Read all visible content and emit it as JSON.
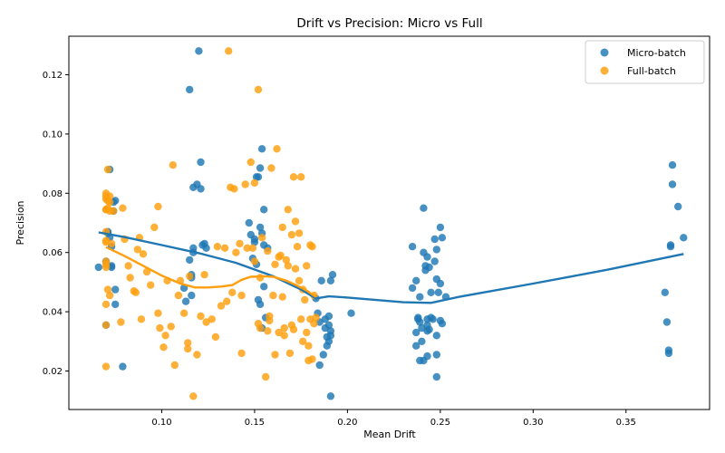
{
  "chart_data": {
    "type": "scatter",
    "title": "Drift vs Precision: Micro vs Full",
    "xlabel": "Mean Drift",
    "ylabel": "Precision",
    "xlim": [
      0.05,
      0.395
    ],
    "ylim": [
      0.007,
      0.133
    ],
    "xticks": [
      0.1,
      0.15,
      0.2,
      0.25,
      0.3,
      0.35
    ],
    "xtick_labels": [
      "0.10",
      "0.15",
      "0.20",
      "0.25",
      "0.30",
      "0.35"
    ],
    "yticks": [
      0.02,
      0.04,
      0.06,
      0.08,
      0.1,
      0.12
    ],
    "ytick_labels": [
      "0.02",
      "0.04",
      "0.06",
      "0.08",
      "0.10",
      "0.12"
    ],
    "grid": false,
    "legend_position": "top-right",
    "series": [
      {
        "name": "Micro-batch",
        "color": "#1f77b4",
        "points": [
          [
            0.066,
            0.055
          ],
          [
            0.07,
            0.0355
          ],
          [
            0.07,
            0.057
          ],
          [
            0.071,
            0.067
          ],
          [
            0.071,
            0.0665
          ],
          [
            0.072,
            0.088
          ],
          [
            0.072,
            0.065
          ],
          [
            0.073,
            0.062
          ],
          [
            0.073,
            0.0555
          ],
          [
            0.073,
            0.055
          ],
          [
            0.074,
            0.077
          ],
          [
            0.074,
            0.074
          ],
          [
            0.075,
            0.0775
          ],
          [
            0.075,
            0.0475
          ],
          [
            0.075,
            0.0425
          ],
          [
            0.079,
            0.0215
          ],
          [
            0.115,
            0.115
          ],
          [
            0.115,
            0.0575
          ],
          [
            0.116,
            0.0525
          ],
          [
            0.116,
            0.0515
          ],
          [
            0.116,
            0.0455
          ],
          [
            0.117,
            0.082
          ],
          [
            0.117,
            0.0615
          ],
          [
            0.117,
            0.06
          ],
          [
            0.119,
            0.083
          ],
          [
            0.12,
            0.128
          ],
          [
            0.121,
            0.0905
          ],
          [
            0.121,
            0.0815
          ],
          [
            0.122,
            0.0625
          ],
          [
            0.123,
            0.063
          ],
          [
            0.124,
            0.0615
          ],
          [
            0.113,
            0.0435
          ],
          [
            0.112,
            0.048
          ],
          [
            0.147,
            0.07
          ],
          [
            0.148,
            0.066
          ],
          [
            0.149,
            0.058
          ],
          [
            0.15,
            0.0645
          ],
          [
            0.15,
            0.0635
          ],
          [
            0.151,
            0.0855
          ],
          [
            0.151,
            0.056
          ],
          [
            0.152,
            0.0855
          ],
          [
            0.152,
            0.044
          ],
          [
            0.153,
            0.0885
          ],
          [
            0.153,
            0.0685
          ],
          [
            0.153,
            0.0425
          ],
          [
            0.154,
            0.095
          ],
          [
            0.154,
            0.0665
          ],
          [
            0.154,
            0.0345
          ],
          [
            0.155,
            0.0745
          ],
          [
            0.155,
            0.0625
          ],
          [
            0.155,
            0.0485
          ],
          [
            0.156,
            0.038
          ],
          [
            0.157,
            0.0615
          ],
          [
            0.183,
            0.0445
          ],
          [
            0.184,
            0.0395
          ],
          [
            0.185,
            0.0365
          ],
          [
            0.185,
            0.022
          ],
          [
            0.186,
            0.0505
          ],
          [
            0.187,
            0.0255
          ],
          [
            0.188,
            0.0375
          ],
          [
            0.188,
            0.0345
          ],
          [
            0.189,
            0.0285
          ],
          [
            0.189,
            0.0315
          ],
          [
            0.19,
            0.0385
          ],
          [
            0.19,
            0.0355
          ],
          [
            0.19,
            0.03
          ],
          [
            0.191,
            0.0505
          ],
          [
            0.191,
            0.0335
          ],
          [
            0.191,
            0.032
          ],
          [
            0.191,
            0.0115
          ],
          [
            0.192,
            0.0525
          ],
          [
            0.202,
            0.0395
          ],
          [
            0.235,
            0.062
          ],
          [
            0.235,
            0.048
          ],
          [
            0.237,
            0.0505
          ],
          [
            0.237,
            0.033
          ],
          [
            0.237,
            0.0285
          ],
          [
            0.238,
            0.038
          ],
          [
            0.238,
            0.0375
          ],
          [
            0.239,
            0.045
          ],
          [
            0.239,
            0.0365
          ],
          [
            0.239,
            0.0235
          ],
          [
            0.24,
            0.0345
          ],
          [
            0.24,
            0.03
          ],
          [
            0.241,
            0.075
          ],
          [
            0.241,
            0.06
          ],
          [
            0.241,
            0.0235
          ],
          [
            0.242,
            0.0555
          ],
          [
            0.242,
            0.054
          ],
          [
            0.243,
            0.0585
          ],
          [
            0.243,
            0.0375
          ],
          [
            0.243,
            0.0355
          ],
          [
            0.243,
            0.0335
          ],
          [
            0.243,
            0.025
          ],
          [
            0.244,
            0.055
          ],
          [
            0.244,
            0.034
          ],
          [
            0.245,
            0.0465
          ],
          [
            0.245,
            0.038
          ],
          [
            0.246,
            0.0375
          ],
          [
            0.247,
            0.0645
          ],
          [
            0.247,
            0.057
          ],
          [
            0.248,
            0.061
          ],
          [
            0.248,
            0.051
          ],
          [
            0.248,
            0.032
          ],
          [
            0.248,
            0.0255
          ],
          [
            0.248,
            0.018
          ],
          [
            0.249,
            0.0465
          ],
          [
            0.25,
            0.0685
          ],
          [
            0.25,
            0.0495
          ],
          [
            0.25,
            0.037
          ],
          [
            0.251,
            0.065
          ],
          [
            0.251,
            0.036
          ],
          [
            0.253,
            0.045
          ],
          [
            0.371,
            0.0465
          ],
          [
            0.372,
            0.0365
          ],
          [
            0.373,
            0.027
          ],
          [
            0.373,
            0.026
          ],
          [
            0.374,
            0.0625
          ],
          [
            0.374,
            0.062
          ],
          [
            0.375,
            0.0895
          ],
          [
            0.375,
            0.083
          ],
          [
            0.378,
            0.0755
          ],
          [
            0.381,
            0.065
          ]
        ]
      },
      {
        "name": "Full-batch",
        "color": "#ff9f0e",
        "points": [
          [
            0.07,
            0.08
          ],
          [
            0.07,
            0.079
          ],
          [
            0.07,
            0.078
          ],
          [
            0.07,
            0.0745
          ],
          [
            0.07,
            0.0745
          ],
          [
            0.07,
            0.067
          ],
          [
            0.07,
            0.064
          ],
          [
            0.07,
            0.0635
          ],
          [
            0.07,
            0.057
          ],
          [
            0.07,
            0.056
          ],
          [
            0.07,
            0.055
          ],
          [
            0.07,
            0.0425
          ],
          [
            0.07,
            0.0355
          ],
          [
            0.07,
            0.0215
          ],
          [
            0.071,
            0.088
          ],
          [
            0.071,
            0.0775
          ],
          [
            0.071,
            0.075
          ],
          [
            0.071,
            0.0475
          ],
          [
            0.072,
            0.079
          ],
          [
            0.072,
            0.077
          ],
          [
            0.072,
            0.074
          ],
          [
            0.072,
            0.0455
          ],
          [
            0.073,
            0.063
          ],
          [
            0.074,
            0.074
          ],
          [
            0.078,
            0.0365
          ],
          [
            0.079,
            0.075
          ],
          [
            0.08,
            0.0645
          ],
          [
            0.082,
            0.0555
          ],
          [
            0.083,
            0.0515
          ],
          [
            0.085,
            0.047
          ],
          [
            0.086,
            0.0465
          ],
          [
            0.087,
            0.061
          ],
          [
            0.088,
            0.065
          ],
          [
            0.089,
            0.0375
          ],
          [
            0.09,
            0.0595
          ],
          [
            0.092,
            0.0535
          ],
          [
            0.094,
            0.049
          ],
          [
            0.096,
            0.0685
          ],
          [
            0.098,
            0.0755
          ],
          [
            0.098,
            0.0395
          ],
          [
            0.099,
            0.0345
          ],
          [
            0.101,
            0.028
          ],
          [
            0.102,
            0.032
          ],
          [
            0.103,
            0.0505
          ],
          [
            0.105,
            0.035
          ],
          [
            0.106,
            0.0895
          ],
          [
            0.107,
            0.022
          ],
          [
            0.109,
            0.0455
          ],
          [
            0.11,
            0.0505
          ],
          [
            0.112,
            0.0395
          ],
          [
            0.114,
            0.0275
          ],
          [
            0.114,
            0.0295
          ],
          [
            0.115,
            0.052
          ],
          [
            0.117,
            0.0115
          ],
          [
            0.119,
            0.0255
          ],
          [
            0.121,
            0.0385
          ],
          [
            0.123,
            0.0525
          ],
          [
            0.124,
            0.0365
          ],
          [
            0.127,
            0.0375
          ],
          [
            0.129,
            0.0315
          ],
          [
            0.13,
            0.062
          ],
          [
            0.132,
            0.042
          ],
          [
            0.134,
            0.0615
          ],
          [
            0.135,
            0.0435
          ],
          [
            0.136,
            0.128
          ],
          [
            0.137,
            0.082
          ],
          [
            0.138,
            0.0465
          ],
          [
            0.139,
            0.0815
          ],
          [
            0.14,
            0.06
          ],
          [
            0.142,
            0.063
          ],
          [
            0.143,
            0.0455
          ],
          [
            0.143,
            0.026
          ],
          [
            0.145,
            0.083
          ],
          [
            0.146,
            0.0615
          ],
          [
            0.148,
            0.0905
          ],
          [
            0.149,
            0.0615
          ],
          [
            0.15,
            0.0835
          ],
          [
            0.15,
            0.057
          ],
          [
            0.152,
            0.115
          ],
          [
            0.152,
            0.036
          ],
          [
            0.153,
            0.0515
          ],
          [
            0.153,
            0.0345
          ],
          [
            0.154,
            0.065
          ],
          [
            0.156,
            0.018
          ],
          [
            0.157,
            0.0335
          ],
          [
            0.157,
            0.0605
          ],
          [
            0.158,
            0.0385
          ],
          [
            0.158,
            0.037
          ],
          [
            0.159,
            0.0885
          ],
          [
            0.16,
            0.0455
          ],
          [
            0.161,
            0.056
          ],
          [
            0.161,
            0.0255
          ],
          [
            0.162,
            0.095
          ],
          [
            0.163,
            0.0585
          ],
          [
            0.163,
            0.033
          ],
          [
            0.164,
            0.059
          ],
          [
            0.165,
            0.0685
          ],
          [
            0.165,
            0.045
          ],
          [
            0.166,
            0.0345
          ],
          [
            0.166,
            0.032
          ],
          [
            0.167,
            0.0575
          ],
          [
            0.168,
            0.0555
          ],
          [
            0.168,
            0.0745
          ],
          [
            0.169,
            0.026
          ],
          [
            0.17,
            0.066
          ],
          [
            0.17,
            0.0355
          ],
          [
            0.171,
            0.0855
          ],
          [
            0.171,
            0.034
          ],
          [
            0.172,
            0.0545
          ],
          [
            0.172,
            0.0705
          ],
          [
            0.173,
            0.062
          ],
          [
            0.174,
            0.0665
          ],
          [
            0.174,
            0.0505
          ],
          [
            0.175,
            0.0855
          ],
          [
            0.175,
            0.0375
          ],
          [
            0.176,
            0.0475
          ],
          [
            0.176,
            0.03
          ],
          [
            0.177,
            0.044
          ],
          [
            0.178,
            0.0555
          ],
          [
            0.178,
            0.033
          ],
          [
            0.179,
            0.0235
          ],
          [
            0.179,
            0.0285
          ],
          [
            0.18,
            0.0625
          ],
          [
            0.18,
            0.0375
          ],
          [
            0.181,
            0.062
          ],
          [
            0.181,
            0.024
          ],
          [
            0.182,
            0.0455
          ],
          [
            0.182,
            0.036
          ],
          [
            0.183,
            0.038
          ]
        ]
      }
    ],
    "trend_lines": [
      {
        "series": "Micro-batch",
        "color": "#1f77b4",
        "points": [
          [
            0.066,
            0.0668
          ],
          [
            0.08,
            0.0652
          ],
          [
            0.1,
            0.0625
          ],
          [
            0.12,
            0.0598
          ],
          [
            0.14,
            0.0565
          ],
          [
            0.16,
            0.052
          ],
          [
            0.175,
            0.0475
          ],
          [
            0.183,
            0.0445
          ],
          [
            0.19,
            0.0452
          ],
          [
            0.2,
            0.0448
          ],
          [
            0.23,
            0.0432
          ],
          [
            0.245,
            0.043
          ],
          [
            0.26,
            0.045
          ],
          [
            0.3,
            0.0495
          ],
          [
            0.34,
            0.0542
          ],
          [
            0.381,
            0.0595
          ]
        ]
      },
      {
        "series": "Full-batch",
        "color": "#ff9f0e",
        "points": [
          [
            0.07,
            0.0618
          ],
          [
            0.08,
            0.0588
          ],
          [
            0.09,
            0.0555
          ],
          [
            0.1,
            0.0522
          ],
          [
            0.11,
            0.0495
          ],
          [
            0.118,
            0.0482
          ],
          [
            0.125,
            0.0482
          ],
          [
            0.132,
            0.0485
          ],
          [
            0.138,
            0.049
          ],
          [
            0.143,
            0.0508
          ],
          [
            0.148,
            0.0518
          ],
          [
            0.155,
            0.052
          ],
          [
            0.16,
            0.0518
          ],
          [
            0.167,
            0.0505
          ],
          [
            0.173,
            0.0488
          ],
          [
            0.178,
            0.0472
          ],
          [
            0.183,
            0.045
          ]
        ]
      }
    ]
  }
}
